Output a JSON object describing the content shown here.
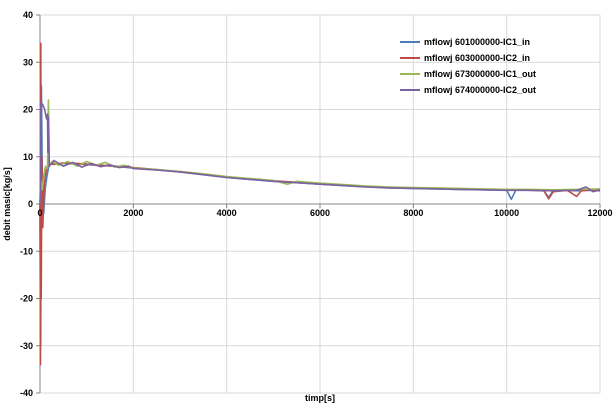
{
  "chart_data": {
    "type": "line",
    "title": "",
    "xlabel": "timp[s]",
    "ylabel": "debit masic[kg/s]",
    "xlim": [
      0,
      12000
    ],
    "ylim": [
      -40,
      40
    ],
    "x_ticks": [
      "0",
      "2000",
      "4000",
      "6000",
      "8000",
      "10000",
      "12000"
    ],
    "y_ticks": [
      "-40",
      "-30",
      "-20",
      "-10",
      "0",
      "10",
      "20",
      "30",
      "40"
    ],
    "grid": true,
    "legend_position": "top-right",
    "colors": {
      "mflowj 601000000-IC1_in": "#4a7ebb",
      "mflowj 603000000-IC2_in": "#be4b48",
      "mflowj 673000000-IC1_out": "#98b954",
      "mflowj 674000000-IC2_out": "#7d60a0"
    },
    "series": [
      {
        "name": "mflowj 601000000-IC1_in",
        "points": [
          [
            0,
            0
          ],
          [
            15,
            -30
          ],
          [
            30,
            25
          ],
          [
            50,
            5
          ],
          [
            80,
            -2
          ],
          [
            110,
            3
          ],
          [
            150,
            6
          ],
          [
            200,
            8.5
          ],
          [
            300,
            8.4
          ],
          [
            500,
            8.6
          ],
          [
            800,
            8.5
          ],
          [
            1200,
            8.2
          ],
          [
            1600,
            8.0
          ],
          [
            2000,
            7.6
          ],
          [
            2500,
            7.2
          ],
          [
            3000,
            6.8
          ],
          [
            3500,
            6.2
          ],
          [
            4000,
            5.6
          ],
          [
            4500,
            5.2
          ],
          [
            5000,
            4.8
          ],
          [
            5500,
            4.5
          ],
          [
            6000,
            4.2
          ],
          [
            6500,
            3.9
          ],
          [
            7000,
            3.6
          ],
          [
            7500,
            3.4
          ],
          [
            8000,
            3.3
          ],
          [
            8500,
            3.2
          ],
          [
            9000,
            3.1
          ],
          [
            9500,
            3.0
          ],
          [
            10000,
            2.9
          ],
          [
            10100,
            1.0
          ],
          [
            10200,
            3.0
          ],
          [
            10500,
            2.9
          ],
          [
            10800,
            2.8
          ],
          [
            10900,
            1.4
          ],
          [
            11000,
            2.9
          ],
          [
            11300,
            2.9
          ],
          [
            11500,
            2.8
          ],
          [
            11800,
            2.9
          ],
          [
            12000,
            2.8
          ]
        ]
      },
      {
        "name": "mflowj 603000000-IC2_in",
        "points": [
          [
            0,
            0
          ],
          [
            10,
            -34
          ],
          [
            18,
            34
          ],
          [
            25,
            -20
          ],
          [
            40,
            10
          ],
          [
            60,
            -5
          ],
          [
            90,
            4
          ],
          [
            130,
            7
          ],
          [
            200,
            8.6
          ],
          [
            300,
            8.4
          ],
          [
            500,
            8.7
          ],
          [
            800,
            8.6
          ],
          [
            1200,
            8.3
          ],
          [
            1600,
            8.0
          ],
          [
            2000,
            7.7
          ],
          [
            2500,
            7.3
          ],
          [
            3000,
            6.8
          ],
          [
            3500,
            6.3
          ],
          [
            4000,
            5.7
          ],
          [
            4500,
            5.3
          ],
          [
            5000,
            4.9
          ],
          [
            5500,
            4.6
          ],
          [
            6000,
            4.3
          ],
          [
            6500,
            4.0
          ],
          [
            7000,
            3.7
          ],
          [
            7500,
            3.5
          ],
          [
            8000,
            3.4
          ],
          [
            8500,
            3.3
          ],
          [
            9000,
            3.2
          ],
          [
            9500,
            3.1
          ],
          [
            10000,
            3.0
          ],
          [
            10500,
            3.0
          ],
          [
            10800,
            2.8
          ],
          [
            10900,
            1.1
          ],
          [
            11000,
            2.6
          ],
          [
            11300,
            2.9
          ],
          [
            11500,
            1.6
          ],
          [
            11600,
            2.8
          ],
          [
            11800,
            3.0
          ],
          [
            12000,
            2.9
          ]
        ]
      },
      {
        "name": "mflowj 673000000-IC1_out",
        "points": [
          [
            0,
            0
          ],
          [
            20,
            5
          ],
          [
            50,
            3
          ],
          [
            80,
            6
          ],
          [
            120,
            8
          ],
          [
            160,
            7.5
          ],
          [
            180,
            22
          ],
          [
            200,
            8
          ],
          [
            260,
            9
          ],
          [
            400,
            8.2
          ],
          [
            600,
            9.0
          ],
          [
            800,
            8.0
          ],
          [
            1000,
            9.0
          ],
          [
            1200,
            8.2
          ],
          [
            1400,
            8.8
          ],
          [
            1600,
            7.8
          ],
          [
            1800,
            8.2
          ],
          [
            2000,
            7.6
          ],
          [
            2500,
            7.3
          ],
          [
            3000,
            6.9
          ],
          [
            3500,
            6.4
          ],
          [
            4000,
            5.8
          ],
          [
            4500,
            5.4
          ],
          [
            5000,
            5.0
          ],
          [
            5300,
            4.2
          ],
          [
            5500,
            4.8
          ],
          [
            6000,
            4.4
          ],
          [
            6500,
            4.1
          ],
          [
            7000,
            3.8
          ],
          [
            7500,
            3.6
          ],
          [
            8000,
            3.5
          ],
          [
            8500,
            3.4
          ],
          [
            9000,
            3.3
          ],
          [
            9500,
            3.2
          ],
          [
            10000,
            3.1
          ],
          [
            10500,
            3.1
          ],
          [
            11000,
            3.0
          ],
          [
            11500,
            3.1
          ],
          [
            12000,
            3.2
          ]
        ]
      },
      {
        "name": "mflowj 674000000-IC2_out",
        "points": [
          [
            0,
            0
          ],
          [
            10,
            5
          ],
          [
            20,
            21.5
          ],
          [
            60,
            21
          ],
          [
            100,
            20
          ],
          [
            140,
            18
          ],
          [
            160,
            19
          ],
          [
            170,
            11
          ],
          [
            180,
            18.5
          ],
          [
            200,
            8
          ],
          [
            300,
            9.2
          ],
          [
            500,
            8.0
          ],
          [
            700,
            8.8
          ],
          [
            900,
            7.8
          ],
          [
            1100,
            8.6
          ],
          [
            1300,
            7.9
          ],
          [
            1500,
            8.3
          ],
          [
            1700,
            7.7
          ],
          [
            1900,
            8.0
          ],
          [
            2000,
            7.5
          ],
          [
            2500,
            7.2
          ],
          [
            3000,
            6.8
          ],
          [
            3500,
            6.2
          ],
          [
            4000,
            5.6
          ],
          [
            4500,
            5.2
          ],
          [
            5000,
            4.8
          ],
          [
            5500,
            4.5
          ],
          [
            6000,
            4.2
          ],
          [
            6500,
            3.9
          ],
          [
            7000,
            3.6
          ],
          [
            7500,
            3.4
          ],
          [
            8000,
            3.3
          ],
          [
            8500,
            3.2
          ],
          [
            9000,
            3.1
          ],
          [
            9500,
            3.0
          ],
          [
            10000,
            2.9
          ],
          [
            10500,
            2.9
          ],
          [
            11000,
            2.8
          ],
          [
            11500,
            2.9
          ],
          [
            11700,
            3.6
          ],
          [
            11850,
            2.6
          ],
          [
            12000,
            3.0
          ]
        ]
      }
    ]
  }
}
